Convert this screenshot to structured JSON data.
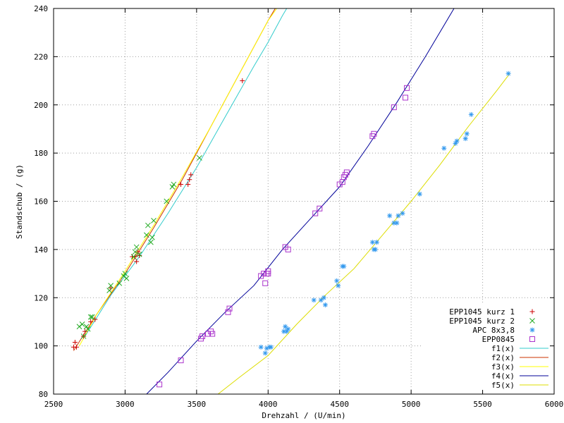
{
  "chart_data": {
    "type": "scatter",
    "title": "",
    "xlabel": "Drehzahl / (U/min)",
    "ylabel": "Standschub / (g)",
    "xlim": [
      2500,
      6000
    ],
    "ylim": [
      80,
      240
    ],
    "xticks": [
      2500,
      3000,
      3500,
      4000,
      4500,
      5000,
      5500,
      6000
    ],
    "yticks": [
      80,
      100,
      120,
      140,
      160,
      180,
      200,
      220,
      240
    ],
    "xtick_labels": [
      "2500",
      "3000",
      "3500",
      "4000",
      "4500",
      "5000",
      "5500",
      "6000"
    ],
    "ytick_labels": [
      "80",
      "100",
      "120",
      "140",
      "160",
      "180",
      "200",
      "220",
      "240"
    ],
    "grid": true,
    "legend_position": "bottom-right",
    "series": [
      {
        "name": "EPP1045 kurz 1",
        "kind": "points",
        "marker": "plus",
        "color": "#cc0000",
        "points": [
          [
            2640,
            99.5
          ],
          [
            2650,
            101.5
          ],
          [
            2660,
            99.5
          ],
          [
            2710,
            104
          ],
          [
            2720,
            106
          ],
          [
            2760,
            110
          ],
          [
            2790,
            111
          ],
          [
            2900,
            124
          ],
          [
            3050,
            137
          ],
          [
            3070,
            137
          ],
          [
            3080,
            135
          ],
          [
            3090,
            139
          ],
          [
            3100,
            137.5
          ],
          [
            3390,
            167
          ],
          [
            3440,
            167
          ],
          [
            3450,
            169
          ],
          [
            3460,
            171
          ],
          [
            3820,
            210
          ]
        ]
      },
      {
        "name": "EPP1045 kurz 2",
        "kind": "points",
        "marker": "x",
        "color": "#22aa22",
        "points": [
          [
            2680,
            108
          ],
          [
            2700,
            109
          ],
          [
            2710,
            104
          ],
          [
            2730,
            108
          ],
          [
            2740,
            107
          ],
          [
            2760,
            112
          ],
          [
            2770,
            112
          ],
          [
            2890,
            123
          ],
          [
            2900,
            125
          ],
          [
            2960,
            126
          ],
          [
            2990,
            129
          ],
          [
            3000,
            130
          ],
          [
            3010,
            128
          ],
          [
            3060,
            137
          ],
          [
            3070,
            139
          ],
          [
            3080,
            141
          ],
          [
            3100,
            138
          ],
          [
            3150,
            146
          ],
          [
            3160,
            150
          ],
          [
            3180,
            143
          ],
          [
            3190,
            145
          ],
          [
            3200,
            152
          ],
          [
            3290,
            160
          ],
          [
            3330,
            166
          ],
          [
            3340,
            167
          ],
          [
            3520,
            178
          ]
        ]
      },
      {
        "name": "APC 8x3,8",
        "kind": "points",
        "marker": "star",
        "color": "#3399ee",
        "points": [
          [
            3950,
            99.5
          ],
          [
            3980,
            97
          ],
          [
            3990,
            99
          ],
          [
            4010,
            99.5
          ],
          [
            4020,
            99.5
          ],
          [
            4110,
            106
          ],
          [
            4120,
            108
          ],
          [
            4130,
            106
          ],
          [
            4140,
            107
          ],
          [
            4320,
            119
          ],
          [
            4370,
            119
          ],
          [
            4390,
            120
          ],
          [
            4400,
            117
          ],
          [
            4480,
            127
          ],
          [
            4490,
            125
          ],
          [
            4520,
            133
          ],
          [
            4530,
            133
          ],
          [
            4730,
            143
          ],
          [
            4740,
            140
          ],
          [
            4750,
            140
          ],
          [
            4760,
            143
          ],
          [
            4850,
            154
          ],
          [
            4880,
            151
          ],
          [
            4900,
            151
          ],
          [
            4910,
            154
          ],
          [
            4940,
            155
          ],
          [
            5060,
            163
          ],
          [
            5230,
            182
          ],
          [
            5310,
            184
          ],
          [
            5320,
            185
          ],
          [
            5380,
            186
          ],
          [
            5390,
            188
          ],
          [
            5420,
            196
          ],
          [
            5680,
            213
          ]
        ]
      },
      {
        "name": "EPP0845",
        "kind": "points",
        "marker": "square",
        "color": "#aa33cc",
        "points": [
          [
            3240,
            84
          ],
          [
            3390,
            94
          ],
          [
            3530,
            103
          ],
          [
            3540,
            104
          ],
          [
            3580,
            105
          ],
          [
            3600,
            106
          ],
          [
            3610,
            105
          ],
          [
            3720,
            114
          ],
          [
            3730,
            115.5
          ],
          [
            3950,
            129
          ],
          [
            3970,
            130
          ],
          [
            3980,
            126
          ],
          [
            3990,
            130
          ],
          [
            4000,
            131
          ],
          [
            4000,
            130
          ],
          [
            4120,
            141
          ],
          [
            4140,
            140
          ],
          [
            4330,
            155
          ],
          [
            4360,
            157
          ],
          [
            4500,
            167
          ],
          [
            4520,
            168
          ],
          [
            4530,
            170
          ],
          [
            4540,
            171
          ],
          [
            4550,
            172
          ],
          [
            4730,
            187
          ],
          [
            4740,
            188
          ],
          [
            4880,
            199
          ],
          [
            4960,
            203
          ],
          [
            4970,
            207
          ]
        ]
      },
      {
        "name": "f1(x)",
        "kind": "line",
        "color": "#33cccc",
        "points": [
          [
            2720,
            104
          ],
          [
            2900,
            121
          ],
          [
            3100,
            137
          ],
          [
            3300,
            155
          ],
          [
            3500,
            174
          ],
          [
            3700,
            195
          ],
          [
            3900,
            216
          ],
          [
            4000,
            226
          ],
          [
            4100,
            237
          ],
          [
            4130,
            240
          ]
        ]
      },
      {
        "name": "f2(x)",
        "kind": "line",
        "color": "#cc3300",
        "points": [
          [
            2640,
            98
          ],
          [
            2800,
            113
          ],
          [
            3000,
            130
          ],
          [
            3200,
            149
          ],
          [
            3400,
            169
          ],
          [
            3600,
            191
          ],
          [
            3800,
            213
          ],
          [
            4000,
            235
          ],
          [
            4050,
            240
          ]
        ]
      },
      {
        "name": "f3(x)",
        "kind": "line",
        "color": "#ffff00",
        "points": [
          [
            2680,
            100
          ],
          [
            2800,
            113
          ],
          [
            3000,
            131
          ],
          [
            3200,
            150
          ],
          [
            3400,
            170
          ],
          [
            3600,
            191
          ],
          [
            3800,
            213
          ],
          [
            4000,
            235
          ],
          [
            4060,
            240
          ]
        ]
      },
      {
        "name": "f4(x)",
        "kind": "line",
        "color": "#000099",
        "points": [
          [
            3150,
            80
          ],
          [
            3300,
            89
          ],
          [
            3500,
            102
          ],
          [
            3700,
            114
          ],
          [
            3900,
            125
          ],
          [
            4100,
            140
          ],
          [
            4300,
            153
          ],
          [
            4500,
            166
          ],
          [
            4700,
            183
          ],
          [
            4900,
            201
          ],
          [
            5100,
            220
          ],
          [
            5300,
            240
          ]
        ]
      },
      {
        "name": "f5(x)",
        "kind": "line",
        "color": "#dddd00",
        "points": [
          [
            3650,
            80
          ],
          [
            3800,
            87
          ],
          [
            4000,
            96
          ],
          [
            4200,
            109
          ],
          [
            4400,
            121
          ],
          [
            4600,
            132
          ],
          [
            4800,
            146
          ],
          [
            5000,
            160
          ],
          [
            5200,
            175
          ],
          [
            5400,
            191
          ],
          [
            5600,
            206
          ],
          [
            5690,
            213
          ]
        ]
      }
    ]
  }
}
